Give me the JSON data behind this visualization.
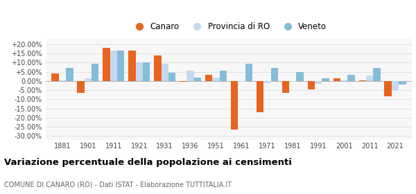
{
  "years": [
    1881,
    1901,
    1911,
    1921,
    1931,
    1936,
    1951,
    1961,
    1971,
    1981,
    1991,
    2001,
    2011,
    2021
  ],
  "canaro": [
    4.0,
    -6.5,
    18.0,
    16.5,
    14.0,
    -0.5,
    3.5,
    -26.5,
    -17.0,
    -6.5,
    -4.5,
    1.5,
    0.5,
    -8.5
  ],
  "provincia_ro": [
    0.5,
    1.5,
    16.5,
    10.0,
    9.5,
    5.5,
    2.0,
    -0.5,
    -1.0,
    -0.5,
    -1.5,
    0.5,
    3.0,
    -5.0
  ],
  "veneto": [
    7.0,
    9.5,
    16.5,
    10.0,
    4.5,
    2.0,
    5.5,
    9.5,
    7.0,
    5.0,
    1.5,
    3.5,
    7.0,
    -2.0
  ],
  "canaro_color": "#e8641e",
  "provincia_color": "#c5d8ee",
  "veneto_color": "#85bdd8",
  "title": "Variazione percentuale della popolazione ai censimenti",
  "subtitle": "COMUNE DI CANARO (RO) - Dati ISTAT - Elaborazione TUTTITALIA.IT",
  "legend_labels": [
    "Canaro",
    "Provincia di RO",
    "Veneto"
  ],
  "ylim": [
    -32,
    23
  ],
  "yticks": [
    -30,
    -25,
    -20,
    -15,
    -10,
    -5,
    0,
    5,
    10,
    15,
    20
  ],
  "background_color": "#ffffff",
  "plot_bg_color": "#f7f7f7",
  "bar_width": 0.28,
  "grid_color": "#e0e0e0"
}
